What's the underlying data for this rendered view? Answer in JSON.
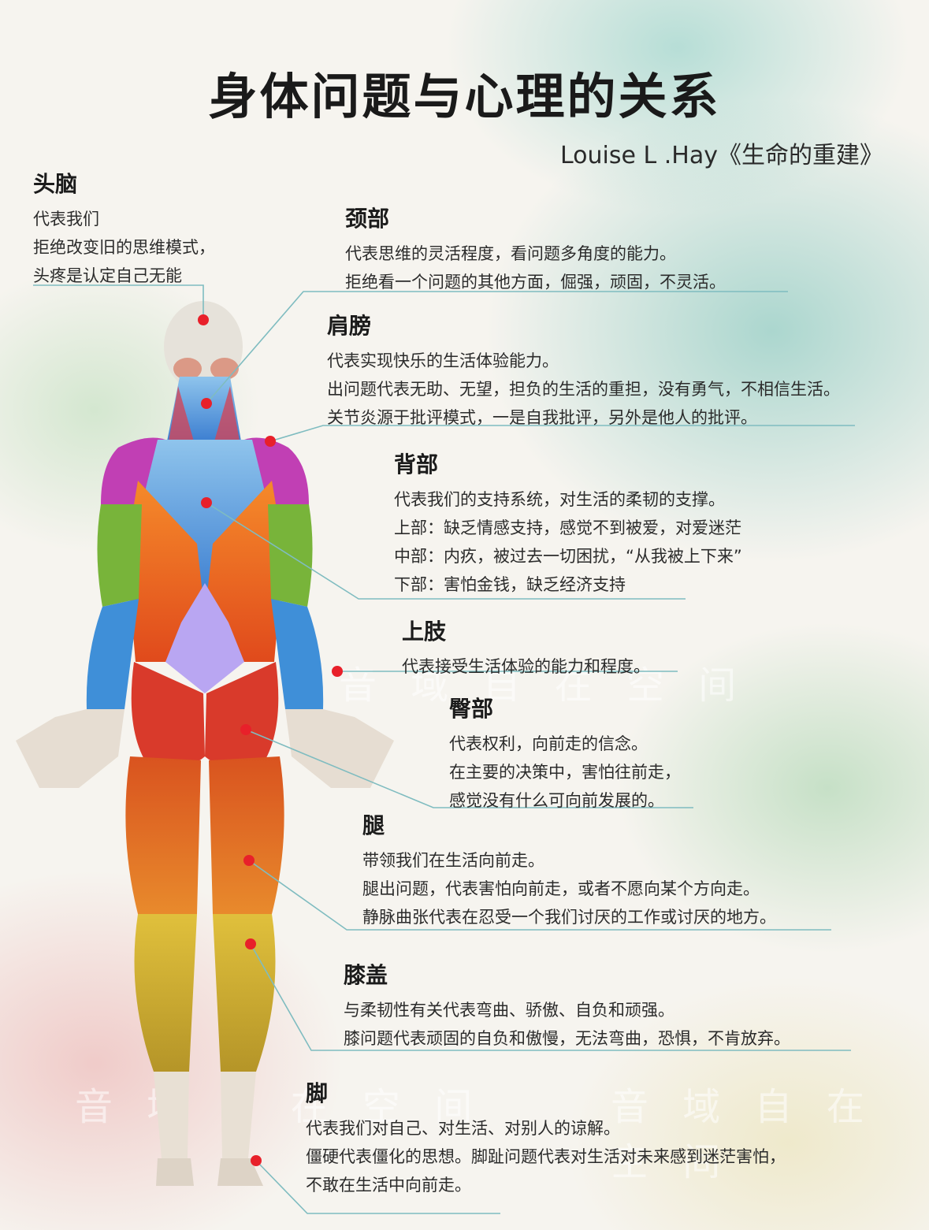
{
  "title": "身体问题与心理的关系",
  "subtitle": "Louise L .Hay《生命的重建》",
  "colors": {
    "marker": "#e8202a",
    "leader_line": "#7fbcc0",
    "skin_light": "#e8e4dc",
    "muscle_red": "#d93a2b",
    "muscle_orange": "#f07a23",
    "muscle_blue": "#4a8fd6",
    "muscle_green": "#78b43a",
    "muscle_purple": "#c13fb4",
    "muscle_yellow": "#d6b93a"
  },
  "watermark": {
    "line1": "音 域 自 在 空 间",
    "line2": "音 域 自 在 空 间",
    "line3": "音 域 自 在 空 间"
  },
  "sections": {
    "head": {
      "heading": "头脑",
      "lines": [
        "代表我们",
        "拒绝改变旧的思维模式，",
        "头疼是认定自己无能"
      ]
    },
    "neck": {
      "heading": "颈部",
      "lines": [
        "代表思维的灵活程度，看问题多角度的能力。",
        "拒绝看一个问题的其他方面，倔强，顽固，不灵活。"
      ]
    },
    "shoulder": {
      "heading": "肩膀",
      "lines": [
        "代表实现快乐的生活体验能力。",
        "出问题代表无助、无望，担负的生活的重担，没有勇气，不相信生活。",
        "关节炎源于批评模式，一是自我批评，另外是他人的批评。"
      ]
    },
    "back": {
      "heading": "背部",
      "lines": [
        "代表我们的支持系统，对生活的柔韧的支撑。",
        "上部：缺乏情感支持，感觉不到被爱，对爱迷茫",
        "中部：内疚，被过去一切困扰，“从我被上下来”",
        "下部：害怕金钱，缺乏经济支持"
      ]
    },
    "upper_limb": {
      "heading": "上肢",
      "lines": [
        "代表接受生活体验的能力和程度。"
      ]
    },
    "hip": {
      "heading": "臀部",
      "lines": [
        "代表权利，向前走的信念。",
        "在主要的决策中，害怕往前走，",
        "感觉没有什么可向前发展的。"
      ]
    },
    "leg": {
      "heading": "腿",
      "lines": [
        "带领我们在生活向前走。",
        "腿出问题，代表害怕向前走，或者不愿向某个方向走。",
        "静脉曲张代表在忍受一个我们讨厌的工作或讨厌的地方。"
      ]
    },
    "knee": {
      "heading": "膝盖",
      "lines": [
        "与柔韧性有关代表弯曲、骄傲、自负和顽强。",
        "膝问题代表顽固的自负和傲慢，无法弯曲，恐惧，不肯放弃。"
      ]
    },
    "foot": {
      "heading": "脚",
      "lines": [
        "代表我们对自己、对生活、对别人的谅解。",
        "僵硬代表僵化的思想。脚趾问题代表对生活对未来感到迷茫害怕，",
        "不敢在生活中向前走。"
      ]
    }
  }
}
